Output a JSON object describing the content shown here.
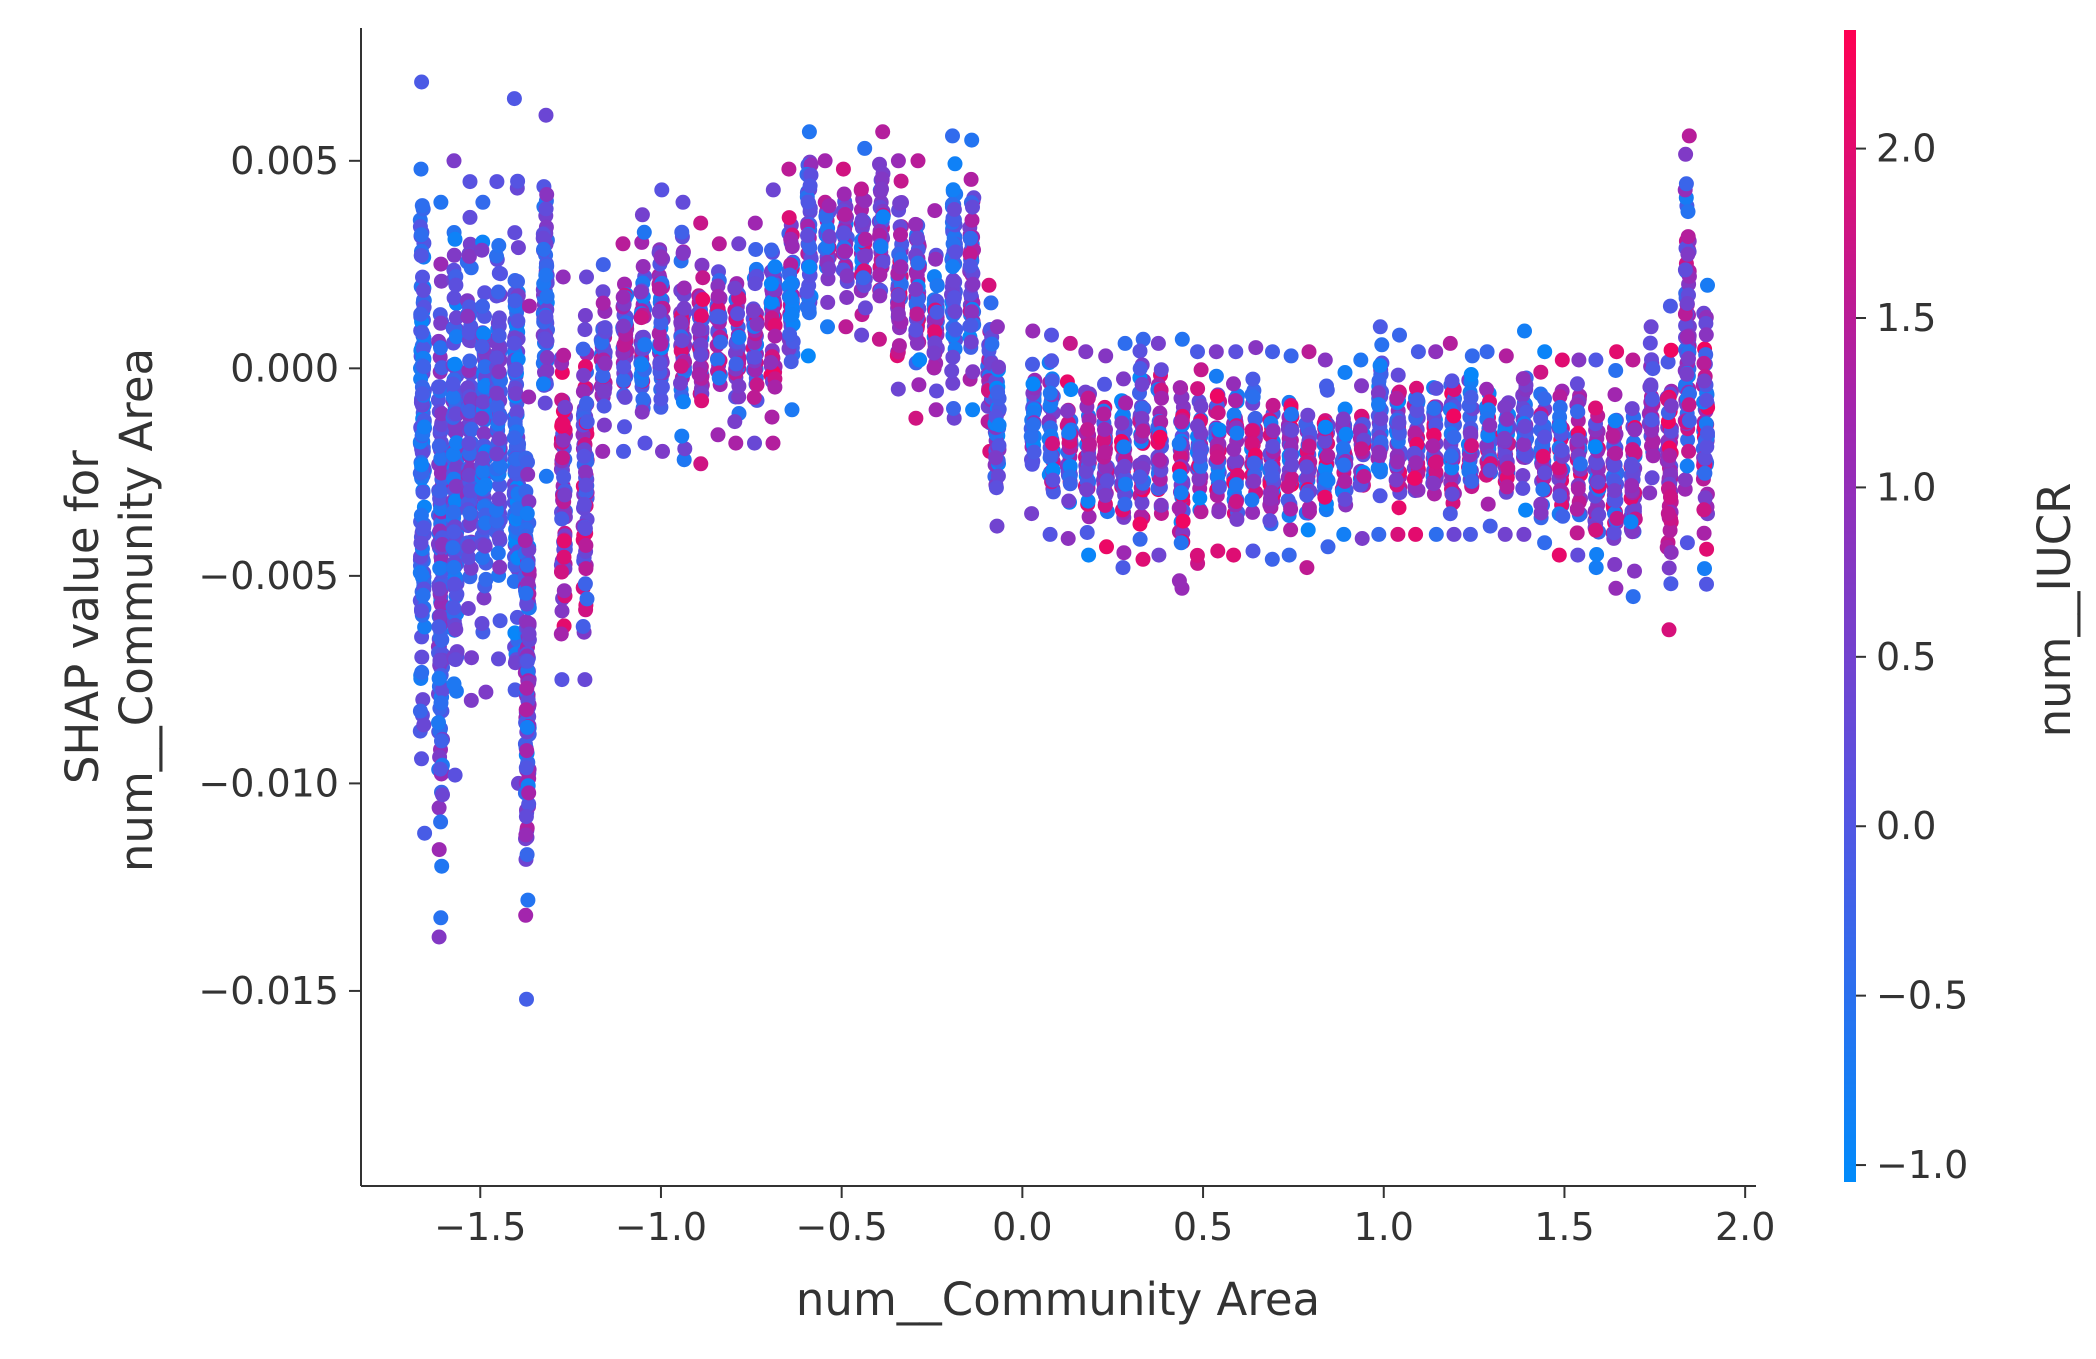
{
  "chart_data": {
    "type": "scatter",
    "xlabel": "num__Community Area",
    "ylabel_lines": [
      "SHAP value for",
      "num__Community Area"
    ],
    "xlim": [
      -1.83,
      2.03
    ],
    "ylim": [
      -0.0197,
      0.0082
    ],
    "xticks": [
      -1.5,
      -1.0,
      -0.5,
      0.0,
      0.5,
      1.0,
      1.5,
      2.0
    ],
    "xtick_labels": [
      "−1.5",
      "−1.0",
      "−0.5",
      "0.0",
      "0.5",
      "1.0",
      "1.5",
      "2.0"
    ],
    "yticks": [
      0.005,
      0.0,
      -0.005,
      -0.01,
      -0.015
    ],
    "ytick_labels": [
      "0.005",
      "0.000",
      "−0.005",
      "−0.010",
      "−0.015"
    ],
    "colorbar": {
      "label": "num__IUCR",
      "range": [
        -1.05,
        2.35
      ],
      "ticks": [
        2.0,
        1.5,
        1.0,
        0.5,
        0.0,
        -0.5,
        -1.0
      ],
      "tick_labels": [
        "2.0",
        "1.5",
        "1.0",
        "0.5",
        "0.0",
        "−0.5",
        "−1.0"
      ],
      "colors": [
        "#008bfb",
        "#5653e2",
        "#a026b0",
        "#ff0052"
      ]
    },
    "columns": [
      {
        "x": -1.66,
        "lo": -0.0112,
        "hi": 0.0069,
        "v": [
          -0.95,
          0.4
        ]
      },
      {
        "x": -1.61,
        "lo": -0.0137,
        "hi": 0.004,
        "v": [
          -0.7,
          1.2
        ]
      },
      {
        "x": -1.57,
        "lo": -0.0098,
        "hi": 0.005,
        "v": [
          -0.9,
          0.8
        ]
      },
      {
        "x": -1.53,
        "lo": -0.008,
        "hi": 0.0045,
        "v": [
          -0.5,
          1.0
        ]
      },
      {
        "x": -1.49,
        "lo": -0.0078,
        "hi": 0.004,
        "v": [
          -0.9,
          0.9
        ]
      },
      {
        "x": -1.45,
        "lo": -0.007,
        "hi": 0.0045,
        "v": [
          -0.8,
          0.8
        ]
      },
      {
        "x": -1.4,
        "lo": -0.01,
        "hi": 0.0065,
        "v": [
          -1.0,
          0.6
        ]
      },
      {
        "x": -1.37,
        "lo": -0.0152,
        "hi": 0.0015,
        "v": [
          -0.9,
          1.4
        ]
      },
      {
        "x": -1.32,
        "lo": -0.0026,
        "hi": 0.0061,
        "v": [
          -0.9,
          0.9
        ]
      },
      {
        "x": -1.27,
        "lo": -0.0075,
        "hi": 0.0022,
        "v": [
          -0.3,
          2.2
        ]
      },
      {
        "x": -1.21,
        "lo": -0.0075,
        "hi": 0.0022,
        "v": [
          -0.4,
          2.1
        ]
      },
      {
        "x": -1.16,
        "lo": -0.002,
        "hi": 0.0025,
        "v": [
          -0.6,
          1.8
        ]
      },
      {
        "x": -1.1,
        "lo": -0.002,
        "hi": 0.003,
        "v": [
          -0.8,
          1.8
        ]
      },
      {
        "x": -1.05,
        "lo": -0.0018,
        "hi": 0.0037,
        "v": [
          -0.8,
          1.9
        ]
      },
      {
        "x": -1.0,
        "lo": -0.002,
        "hi": 0.0043,
        "v": [
          -1.0,
          1.6
        ]
      },
      {
        "x": -0.94,
        "lo": -0.0022,
        "hi": 0.004,
        "v": [
          -0.9,
          2.0
        ]
      },
      {
        "x": -0.89,
        "lo": -0.0023,
        "hi": 0.0035,
        "v": [
          -0.9,
          2.1
        ]
      },
      {
        "x": -0.84,
        "lo": -0.0016,
        "hi": 0.003,
        "v": [
          -0.8,
          2.0
        ]
      },
      {
        "x": -0.79,
        "lo": -0.0018,
        "hi": 0.003,
        "v": [
          -0.7,
          1.9
        ]
      },
      {
        "x": -0.74,
        "lo": -0.0018,
        "hi": 0.0035,
        "v": [
          -0.8,
          2.0
        ]
      },
      {
        "x": -0.69,
        "lo": -0.0018,
        "hi": 0.0043,
        "v": [
          -1.0,
          2.2
        ]
      },
      {
        "x": -0.64,
        "lo": -0.001,
        "hi": 0.0048,
        "v": [
          -0.9,
          2.0
        ]
      },
      {
        "x": -0.59,
        "lo": 0.0003,
        "hi": 0.0057,
        "v": [
          -1.0,
          1.6
        ]
      },
      {
        "x": -0.54,
        "lo": 0.001,
        "hi": 0.005,
        "v": [
          -0.9,
          1.8
        ]
      },
      {
        "x": -0.49,
        "lo": 0.001,
        "hi": 0.0048,
        "v": [
          -0.9,
          2.0
        ]
      },
      {
        "x": -0.44,
        "lo": 0.0008,
        "hi": 0.0053,
        "v": [
          -0.9,
          1.9
        ]
      },
      {
        "x": -0.39,
        "lo": 0.0007,
        "hi": 0.0057,
        "v": [
          -0.9,
          1.8
        ]
      },
      {
        "x": -0.34,
        "lo": -0.0005,
        "hi": 0.005,
        "v": [
          -0.8,
          2.1
        ]
      },
      {
        "x": -0.29,
        "lo": -0.0012,
        "hi": 0.005,
        "v": [
          -1.0,
          2.0
        ]
      },
      {
        "x": -0.24,
        "lo": -0.001,
        "hi": 0.0038,
        "v": [
          -0.9,
          2.0
        ]
      },
      {
        "x": -0.19,
        "lo": -0.0012,
        "hi": 0.0056,
        "v": [
          -1.0,
          0.5
        ]
      },
      {
        "x": -0.14,
        "lo": -0.001,
        "hi": 0.0055,
        "v": [
          -1.0,
          1.8
        ]
      },
      {
        "x": -0.09,
        "lo": -0.002,
        "hi": 0.002,
        "v": [
          -0.9,
          2.0
        ]
      },
      {
        "x": -0.07,
        "lo": -0.0038,
        "hi": 0.001,
        "v": [
          -1.0,
          1.0
        ]
      },
      {
        "x": 0.03,
        "lo": -0.0035,
        "hi": 0.0009,
        "v": [
          -1.0,
          1.6
        ]
      },
      {
        "x": 0.08,
        "lo": -0.004,
        "hi": 0.0008,
        "v": [
          -1.0,
          2.0
        ]
      },
      {
        "x": 0.13,
        "lo": -0.0041,
        "hi": 0.0006,
        "v": [
          -1.0,
          2.2
        ]
      },
      {
        "x": 0.18,
        "lo": -0.0045,
        "hi": 0.0004,
        "v": [
          -1.0,
          2.2
        ]
      },
      {
        "x": 0.23,
        "lo": -0.0043,
        "hi": 0.0003,
        "v": [
          -1.0,
          2.2
        ]
      },
      {
        "x": 0.28,
        "lo": -0.0048,
        "hi": 0.0006,
        "v": [
          -1.0,
          2.2
        ]
      },
      {
        "x": 0.33,
        "lo": -0.0046,
        "hi": 0.0007,
        "v": [
          -1.0,
          2.2
        ]
      },
      {
        "x": 0.38,
        "lo": -0.0045,
        "hi": 0.0006,
        "v": [
          -1.0,
          2.2
        ]
      },
      {
        "x": 0.44,
        "lo": -0.0053,
        "hi": 0.0007,
        "v": [
          -1.0,
          2.2
        ]
      },
      {
        "x": 0.49,
        "lo": -0.0047,
        "hi": 0.0004,
        "v": [
          -1.0,
          2.2
        ]
      },
      {
        "x": 0.54,
        "lo": -0.0044,
        "hi": 0.0004,
        "v": [
          -1.0,
          2.2
        ]
      },
      {
        "x": 0.59,
        "lo": -0.0045,
        "hi": 0.0004,
        "v": [
          -1.0,
          2.2
        ]
      },
      {
        "x": 0.64,
        "lo": -0.0044,
        "hi": 0.0005,
        "v": [
          -1.0,
          2.2
        ]
      },
      {
        "x": 0.69,
        "lo": -0.0046,
        "hi": 0.0004,
        "v": [
          -1.0,
          2.2
        ]
      },
      {
        "x": 0.74,
        "lo": -0.0045,
        "hi": 0.0003,
        "v": [
          -1.0,
          2.2
        ]
      },
      {
        "x": 0.79,
        "lo": -0.0048,
        "hi": 0.0004,
        "v": [
          -1.0,
          2.2
        ]
      },
      {
        "x": 0.84,
        "lo": -0.0043,
        "hi": 0.0002,
        "v": [
          -1.0,
          2.2
        ]
      },
      {
        "x": 0.89,
        "lo": -0.004,
        "hi": -0.0001,
        "v": [
          -1.0,
          2.0
        ]
      },
      {
        "x": 0.94,
        "lo": -0.0041,
        "hi": 0.0002,
        "v": [
          -1.0,
          2.1
        ]
      },
      {
        "x": 0.99,
        "lo": -0.004,
        "hi": 0.001,
        "v": [
          -1.0,
          1.2
        ]
      },
      {
        "x": 1.04,
        "lo": -0.004,
        "hi": 0.0008,
        "v": [
          -1.0,
          2.1
        ]
      },
      {
        "x": 1.09,
        "lo": -0.004,
        "hi": 0.0004,
        "v": [
          -1.0,
          2.2
        ]
      },
      {
        "x": 1.14,
        "lo": -0.004,
        "hi": 0.0004,
        "v": [
          -1.0,
          2.2
        ]
      },
      {
        "x": 1.19,
        "lo": -0.004,
        "hi": 0.0006,
        "v": [
          -1.0,
          2.2
        ]
      },
      {
        "x": 1.24,
        "lo": -0.004,
        "hi": 0.0003,
        "v": [
          -1.0,
          2.1
        ]
      },
      {
        "x": 1.29,
        "lo": -0.0038,
        "hi": 0.0004,
        "v": [
          -1.0,
          2.0
        ]
      },
      {
        "x": 1.34,
        "lo": -0.004,
        "hi": 0.0003,
        "v": [
          -1.0,
          2.1
        ]
      },
      {
        "x": 1.39,
        "lo": -0.004,
        "hi": 0.0009,
        "v": [
          -1.0,
          1.0
        ]
      },
      {
        "x": 1.44,
        "lo": -0.0042,
        "hi": 0.0004,
        "v": [
          -1.0,
          2.0
        ]
      },
      {
        "x": 1.49,
        "lo": -0.0045,
        "hi": 0.0002,
        "v": [
          -1.0,
          2.2
        ]
      },
      {
        "x": 1.54,
        "lo": -0.0045,
        "hi": 0.0002,
        "v": [
          -1.0,
          2.2
        ]
      },
      {
        "x": 1.59,
        "lo": -0.0048,
        "hi": 0.0002,
        "v": [
          -1.0,
          2.2
        ]
      },
      {
        "x": 1.64,
        "lo": -0.0053,
        "hi": 0.0004,
        "v": [
          -1.0,
          2.2
        ]
      },
      {
        "x": 1.69,
        "lo": -0.0055,
        "hi": 0.0002,
        "v": [
          -0.9,
          2.2
        ]
      },
      {
        "x": 1.74,
        "lo": -0.003,
        "hi": 0.001,
        "v": [
          -0.2,
          1.5
        ]
      },
      {
        "x": 1.79,
        "lo": -0.0063,
        "hi": 0.0015,
        "v": [
          -0.2,
          2.2
        ]
      },
      {
        "x": 1.84,
        "lo": -0.0042,
        "hi": 0.0056,
        "v": [
          -0.9,
          1.8
        ]
      },
      {
        "x": 1.89,
        "lo": -0.0052,
        "hi": 0.002,
        "v": [
          -0.8,
          2.2
        ]
      }
    ]
  }
}
